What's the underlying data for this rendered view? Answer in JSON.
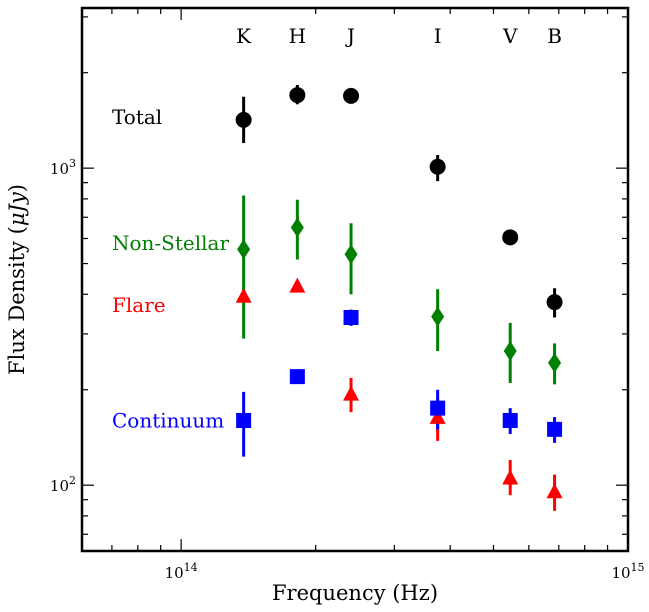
{
  "chart_data": {
    "type": "scatter",
    "title": "",
    "xlabel": "Frequency (Hz)",
    "ylabel_prefix": "Flux Density (",
    "ylabel_unit": "μJy",
    "ylabel_suffix": ")",
    "x_scale": "log",
    "y_scale": "log",
    "xlim": [
      60000000000000.0,
      1000000000000000.0
    ],
    "ylim": [
      62,
      3200
    ],
    "grid": false,
    "legend": "inline labels at left",
    "x_ticks": [
      {
        "value": 100000000000000.0,
        "base": "10",
        "exp": "14"
      },
      {
        "value": 1000000000000000.0,
        "base": "10",
        "exp": "15"
      }
    ],
    "y_ticks": [
      {
        "value": 100,
        "base": "10",
        "exp": "2"
      },
      {
        "value": 1000,
        "base": "10",
        "exp": "3"
      }
    ],
    "bands": [
      {
        "label": "K",
        "x": 138000000000000.0
      },
      {
        "label": "H",
        "x": 182000000000000.0
      },
      {
        "label": "J",
        "x": 240000000000000.0
      },
      {
        "label": "I",
        "x": 375000000000000.0
      },
      {
        "label": "V",
        "x": 545000000000000.0
      },
      {
        "label": "B",
        "x": 685000000000000.0
      }
    ],
    "series": [
      {
        "name": "Total",
        "color": "#000000",
        "marker": "circle",
        "label_y": 1450,
        "points": [
          {
            "x": 138000000000000.0,
            "y": 1420,
            "lo": 1200,
            "hi": 1680
          },
          {
            "x": 182000000000000.0,
            "y": 1700,
            "lo": 1590,
            "hi": 1830
          },
          {
            "x": 240000000000000.0,
            "y": 1690,
            "lo": 1690,
            "hi": 1690
          },
          {
            "x": 375000000000000.0,
            "y": 1010,
            "lo": 910,
            "hi": 1100
          },
          {
            "x": 545000000000000.0,
            "y": 605,
            "lo": 575,
            "hi": 640
          },
          {
            "x": 685000000000000.0,
            "y": 378,
            "lo": 338,
            "hi": 418
          }
        ]
      },
      {
        "name": "Non-Stellar",
        "color": "#008000",
        "marker": "diamond",
        "label_y": 580,
        "points": [
          {
            "x": 138000000000000.0,
            "y": 555,
            "lo": 290,
            "hi": 820
          },
          {
            "x": 182000000000000.0,
            "y": 650,
            "lo": 515,
            "hi": 795
          },
          {
            "x": 240000000000000.0,
            "y": 535,
            "lo": 400,
            "hi": 670
          },
          {
            "x": 375000000000000.0,
            "y": 340,
            "lo": 265,
            "hi": 415
          },
          {
            "x": 545000000000000.0,
            "y": 265,
            "lo": 210,
            "hi": 325
          },
          {
            "x": 685000000000000.0,
            "y": 243,
            "lo": 208,
            "hi": 280
          }
        ]
      },
      {
        "name": "Flare",
        "color": "#ff0000",
        "marker": "triangle",
        "label_y": 370,
        "points": [
          {
            "x": 138000000000000.0,
            "y": 393,
            "lo": 393,
            "hi": 393
          },
          {
            "x": 182000000000000.0,
            "y": 423,
            "lo": 423,
            "hi": 423
          },
          {
            "x": 240000000000000.0,
            "y": 193,
            "lo": 170,
            "hi": 218
          },
          {
            "x": 375000000000000.0,
            "y": 163,
            "lo": 138,
            "hi": 188
          },
          {
            "x": 545000000000000.0,
            "y": 105,
            "lo": 93,
            "hi": 120
          },
          {
            "x": 685000000000000.0,
            "y": 95,
            "lo": 83,
            "hi": 108
          }
        ]
      },
      {
        "name": "Continuum",
        "color": "#0000ff",
        "marker": "square",
        "label_y": 160,
        "points": [
          {
            "x": 138000000000000.0,
            "y": 160,
            "lo": 123,
            "hi": 197
          },
          {
            "x": 182000000000000.0,
            "y": 220,
            "lo": 220,
            "hi": 220
          },
          {
            "x": 240000000000000.0,
            "y": 338,
            "lo": 318,
            "hi": 358
          },
          {
            "x": 375000000000000.0,
            "y": 175,
            "lo": 150,
            "hi": 200
          },
          {
            "x": 545000000000000.0,
            "y": 160,
            "lo": 145,
            "hi": 175
          },
          {
            "x": 685000000000000.0,
            "y": 150,
            "lo": 136,
            "hi": 164
          }
        ]
      }
    ]
  }
}
